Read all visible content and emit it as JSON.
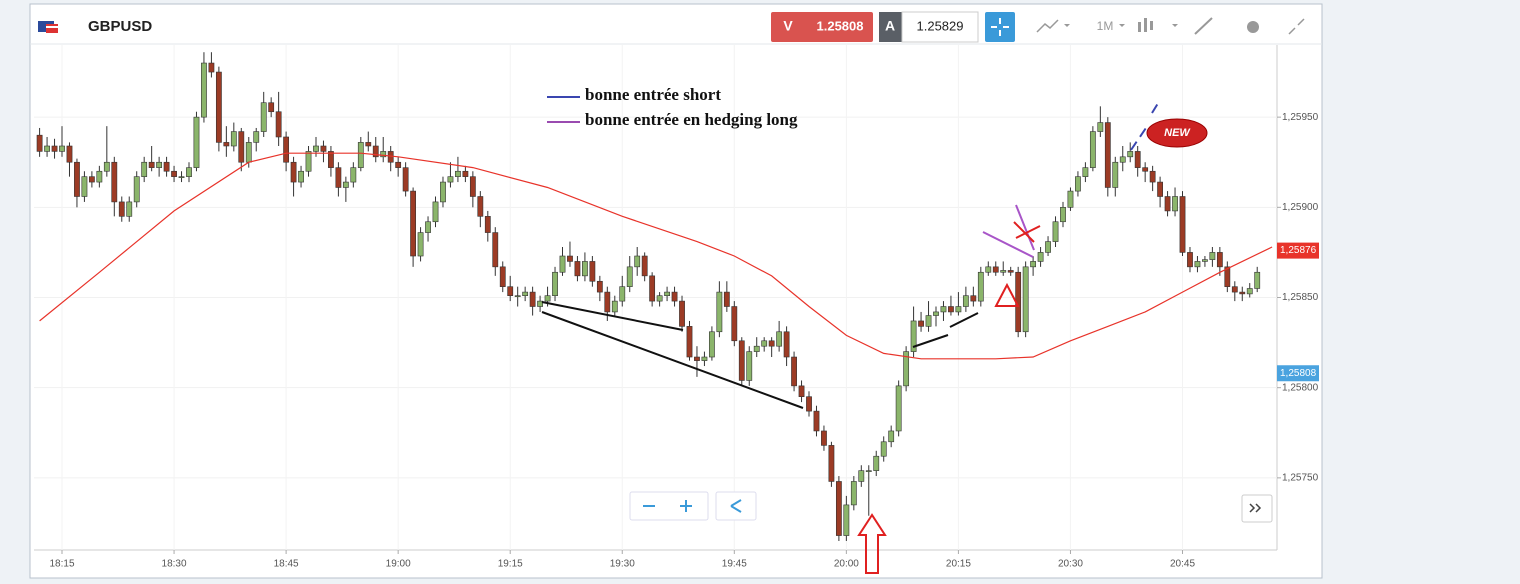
{
  "chart_data": {
    "type": "candlestick",
    "title": "GBPUSD",
    "bid_label": "V",
    "bid": 1.25808,
    "ask_label": "A",
    "ask": 1.25829,
    "timeframe": "1M",
    "badge": "NEW",
    "annotations": [
      "bonne entrée short",
      "bonne entrée en hedging long"
    ],
    "up_color": "#8bb56b",
    "down_color": "#9c3b25",
    "ma_color": "#e8332a",
    "grid": true,
    "ylim": [
      1.2571,
      1.2599
    ],
    "yticks": [
      {
        "value": 1.2575,
        "label": "1,25750"
      },
      {
        "value": 1.258,
        "label": "1,25800"
      },
      {
        "value": 1.2585,
        "label": "1,25850"
      },
      {
        "value": 1.259,
        "label": "1,25900"
      },
      {
        "value": 1.2595,
        "label": "1,25950"
      }
    ],
    "price_tags": [
      {
        "value": 1.25876,
        "label": "1,25876",
        "color": "#e8332a"
      },
      {
        "value": 1.25808,
        "label": "1,25808",
        "color": "#4aa3df"
      }
    ],
    "xticks": [
      "18:15",
      "18:30",
      "18:45",
      "19:00",
      "19:15",
      "19:30",
      "19:45",
      "20:00",
      "20:15",
      "20:30",
      "20:45"
    ],
    "x": [
      "18:12",
      "18:13",
      "18:14",
      "18:15",
      "18:16",
      "18:17",
      "18:18",
      "18:19",
      "18:20",
      "18:21",
      "18:22",
      "18:23",
      "18:24",
      "18:25",
      "18:26",
      "18:27",
      "18:28",
      "18:29",
      "18:30",
      "18:31",
      "18:32",
      "18:33",
      "18:34",
      "18:35",
      "18:36",
      "18:37",
      "18:38",
      "18:39",
      "18:40",
      "18:41",
      "18:42",
      "18:43",
      "18:44",
      "18:45",
      "18:46",
      "18:47",
      "18:48",
      "18:49",
      "18:50",
      "18:51",
      "18:52",
      "18:53",
      "18:54",
      "18:55",
      "18:56",
      "18:57",
      "18:58",
      "18:59",
      "19:00",
      "19:01",
      "19:02",
      "19:03",
      "19:04",
      "19:05",
      "19:06",
      "19:07",
      "19:08",
      "19:09",
      "19:10",
      "19:11",
      "19:12",
      "19:13",
      "19:14",
      "19:15",
      "19:16",
      "19:17",
      "19:18",
      "19:19",
      "19:20",
      "19:21",
      "19:22",
      "19:23",
      "19:24",
      "19:25",
      "19:26",
      "19:27",
      "19:28",
      "19:29",
      "19:30",
      "19:31",
      "19:32",
      "19:33",
      "19:34",
      "19:35",
      "19:36",
      "19:37",
      "19:38",
      "19:39",
      "19:40",
      "19:41",
      "19:42",
      "19:43",
      "19:44",
      "19:45",
      "19:46",
      "19:47",
      "19:48",
      "19:49",
      "19:50",
      "19:51",
      "19:52",
      "19:53",
      "19:54",
      "19:55",
      "19:56",
      "19:57",
      "19:58",
      "19:59",
      "20:00",
      "20:01",
      "20:02",
      "20:03",
      "20:04",
      "20:05",
      "20:06",
      "20:07",
      "20:08",
      "20:09",
      "20:10",
      "20:11",
      "20:12",
      "20:13",
      "20:14",
      "20:15",
      "20:16",
      "20:17",
      "20:18",
      "20:19",
      "20:20",
      "20:21",
      "20:22",
      "20:23",
      "20:24",
      "20:25",
      "20:26",
      "20:27",
      "20:28",
      "20:29",
      "20:30",
      "20:31",
      "20:32",
      "20:33",
      "20:34",
      "20:35",
      "20:36",
      "20:37",
      "20:38",
      "20:39",
      "20:40",
      "20:41",
      "20:42",
      "20:43",
      "20:44",
      "20:45",
      "20:46",
      "20:47",
      "20:48",
      "20:49",
      "20:50",
      "20:51",
      "20:52",
      "20:53",
      "20:54",
      "20:55"
    ],
    "ohlc": [
      [
        1.2594,
        1.25944,
        1.25928,
        1.25931
      ],
      [
        1.25931,
        1.25939,
        1.25928,
        1.25934
      ],
      [
        1.25934,
        1.25938,
        1.25927,
        1.25931
      ],
      [
        1.25931,
        1.25945,
        1.25928,
        1.25934
      ],
      [
        1.25934,
        1.25936,
        1.25917,
        1.25925
      ],
      [
        1.25925,
        1.25927,
        1.259,
        1.25906
      ],
      [
        1.25906,
        1.2592,
        1.25903,
        1.25917
      ],
      [
        1.25917,
        1.2592,
        1.25911,
        1.25914
      ],
      [
        1.25914,
        1.25923,
        1.25911,
        1.2592
      ],
      [
        1.2592,
        1.25945,
        1.25917,
        1.25925
      ],
      [
        1.25925,
        1.25928,
        1.25895,
        1.25903
      ],
      [
        1.25903,
        1.25906,
        1.25892,
        1.25895
      ],
      [
        1.25895,
        1.25906,
        1.25892,
        1.25903
      ],
      [
        1.25903,
        1.2592,
        1.259,
        1.25917
      ],
      [
        1.25917,
        1.25928,
        1.25914,
        1.25925
      ],
      [
        1.25925,
        1.25934,
        1.2592,
        1.25922
      ],
      [
        1.25922,
        1.25928,
        1.25917,
        1.25925
      ],
      [
        1.25925,
        1.25928,
        1.25917,
        1.2592
      ],
      [
        1.2592,
        1.25923,
        1.25914,
        1.25917
      ],
      [
        1.25917,
        1.2592,
        1.25914,
        1.25917
      ],
      [
        1.25917,
        1.25925,
        1.25914,
        1.25922
      ],
      [
        1.25922,
        1.25953,
        1.2592,
        1.2595
      ],
      [
        1.2595,
        1.25986,
        1.25947,
        1.2598
      ],
      [
        1.2598,
        1.25986,
        1.25972,
        1.25975
      ],
      [
        1.25975,
        1.25978,
        1.25931,
        1.25936
      ],
      [
        1.25936,
        1.25945,
        1.25928,
        1.25934
      ],
      [
        1.25934,
        1.25947,
        1.25931,
        1.25942
      ],
      [
        1.25942,
        1.25944,
        1.2592,
        1.25925
      ],
      [
        1.25925,
        1.25939,
        1.25922,
        1.25936
      ],
      [
        1.25936,
        1.25944,
        1.25931,
        1.25942
      ],
      [
        1.25942,
        1.25964,
        1.25939,
        1.25958
      ],
      [
        1.25958,
        1.25961,
        1.2595,
        1.25953
      ],
      [
        1.25953,
        1.25964,
        1.25934,
        1.25939
      ],
      [
        1.25939,
        1.25942,
        1.2592,
        1.25925
      ],
      [
        1.25925,
        1.25928,
        1.25906,
        1.25914
      ],
      [
        1.25914,
        1.25923,
        1.25911,
        1.2592
      ],
      [
        1.2592,
        1.25934,
        1.25917,
        1.25931
      ],
      [
        1.25931,
        1.25939,
        1.25928,
        1.25934
      ],
      [
        1.25934,
        1.25937,
        1.25925,
        1.25931
      ],
      [
        1.25931,
        1.25934,
        1.25917,
        1.25922
      ],
      [
        1.25922,
        1.25925,
        1.25906,
        1.25911
      ],
      [
        1.25911,
        1.25917,
        1.25903,
        1.25914
      ],
      [
        1.25914,
        1.25925,
        1.25911,
        1.25922
      ],
      [
        1.25922,
        1.25939,
        1.2592,
        1.25936
      ],
      [
        1.25936,
        1.25942,
        1.25931,
        1.25934
      ],
      [
        1.25934,
        1.25939,
        1.25925,
        1.25928
      ],
      [
        1.25928,
        1.25939,
        1.25925,
        1.25931
      ],
      [
        1.25931,
        1.25934,
        1.2592,
        1.25925
      ],
      [
        1.25925,
        1.25928,
        1.25917,
        1.25922
      ],
      [
        1.25922,
        1.25925,
        1.25906,
        1.25909
      ],
      [
        1.25909,
        1.25911,
        1.25867,
        1.25873
      ],
      [
        1.25873,
        1.25889,
        1.2587,
        1.25886
      ],
      [
        1.25886,
        1.25895,
        1.25881,
        1.25892
      ],
      [
        1.25892,
        1.25906,
        1.25889,
        1.25903
      ],
      [
        1.25903,
        1.25917,
        1.259,
        1.25914
      ],
      [
        1.25914,
        1.25925,
        1.25911,
        1.25917
      ],
      [
        1.25917,
        1.25928,
        1.25914,
        1.2592
      ],
      [
        1.2592,
        1.25923,
        1.25914,
        1.25917
      ],
      [
        1.25917,
        1.2592,
        1.259,
        1.25906
      ],
      [
        1.25906,
        1.25909,
        1.25889,
        1.25895
      ],
      [
        1.25895,
        1.25898,
        1.25881,
        1.25886
      ],
      [
        1.25886,
        1.25889,
        1.25862,
        1.25867
      ],
      [
        1.25867,
        1.2587,
        1.25853,
        1.25856
      ],
      [
        1.25856,
        1.25862,
        1.25848,
        1.25851
      ],
      [
        1.25851,
        1.25856,
        1.25845,
        1.25851
      ],
      [
        1.25851,
        1.25856,
        1.25848,
        1.25853
      ],
      [
        1.25853,
        1.25856,
        1.2584,
        1.25845
      ],
      [
        1.25845,
        1.25851,
        1.25842,
        1.25848
      ],
      [
        1.25848,
        1.25856,
        1.25845,
        1.25851
      ],
      [
        1.25851,
        1.25867,
        1.25848,
        1.25864
      ],
      [
        1.25864,
        1.25878,
        1.25862,
        1.25873
      ],
      [
        1.25873,
        1.25881,
        1.25867,
        1.2587
      ],
      [
        1.2587,
        1.25873,
        1.25859,
        1.25862
      ],
      [
        1.25862,
        1.25875,
        1.25859,
        1.2587
      ],
      [
        1.2587,
        1.25873,
        1.25856,
        1.25859
      ],
      [
        1.25859,
        1.25862,
        1.25848,
        1.25853
      ],
      [
        1.25853,
        1.25856,
        1.25837,
        1.25842
      ],
      [
        1.25842,
        1.25851,
        1.2584,
        1.25848
      ],
      [
        1.25848,
        1.25862,
        1.25845,
        1.25856
      ],
      [
        1.25856,
        1.25873,
        1.25853,
        1.25867
      ],
      [
        1.25867,
        1.25878,
        1.25862,
        1.25873
      ],
      [
        1.25873,
        1.25875,
        1.25859,
        1.25862
      ],
      [
        1.25862,
        1.25864,
        1.25845,
        1.25848
      ],
      [
        1.25848,
        1.25853,
        1.25845,
        1.25851
      ],
      [
        1.25851,
        1.25856,
        1.25848,
        1.25853
      ],
      [
        1.25853,
        1.25856,
        1.25845,
        1.25848
      ],
      [
        1.25848,
        1.25851,
        1.25831,
        1.25834
      ],
      [
        1.25834,
        1.25837,
        1.25815,
        1.25817
      ],
      [
        1.25817,
        1.25823,
        1.25806,
        1.25815
      ],
      [
        1.25815,
        1.2582,
        1.25812,
        1.25817
      ],
      [
        1.25817,
        1.25834,
        1.25815,
        1.25831
      ],
      [
        1.25831,
        1.25859,
        1.25828,
        1.25853
      ],
      [
        1.25853,
        1.25859,
        1.25842,
        1.25845
      ],
      [
        1.25845,
        1.25848,
        1.25823,
        1.25826
      ],
      [
        1.25826,
        1.25828,
        1.25801,
        1.25804
      ],
      [
        1.25804,
        1.25823,
        1.25801,
        1.2582
      ],
      [
        1.2582,
        1.25828,
        1.25817,
        1.25823
      ],
      [
        1.25823,
        1.25828,
        1.2582,
        1.25826
      ],
      [
        1.25826,
        1.25828,
        1.25817,
        1.25823
      ],
      [
        1.25823,
        1.25837,
        1.2582,
        1.25831
      ],
      [
        1.25831,
        1.25834,
        1.25812,
        1.25817
      ],
      [
        1.25817,
        1.2582,
        1.25798,
        1.25801
      ],
      [
        1.25801,
        1.25804,
        1.25792,
        1.25795
      ],
      [
        1.25795,
        1.25798,
        1.25784,
        1.25787
      ],
      [
        1.25787,
        1.2579,
        1.25773,
        1.25776
      ],
      [
        1.25776,
        1.25779,
        1.25765,
        1.25768
      ],
      [
        1.25768,
        1.2577,
        1.25745,
        1.25748
      ],
      [
        1.25748,
        1.25751,
        1.25715,
        1.25718
      ],
      [
        1.25718,
        1.2574,
        1.25715,
        1.25735
      ],
      [
        1.25735,
        1.25751,
        1.25732,
        1.25748
      ],
      [
        1.25748,
        1.25757,
        1.25745,
        1.25754
      ],
      [
        1.25754,
        1.25757,
        1.25729,
        1.25754
      ],
      [
        1.25754,
        1.25765,
        1.25751,
        1.25762
      ],
      [
        1.25762,
        1.25773,
        1.25759,
        1.2577
      ],
      [
        1.2577,
        1.25779,
        1.25767,
        1.25776
      ],
      [
        1.25776,
        1.25804,
        1.25773,
        1.25801
      ],
      [
        1.25801,
        1.25823,
        1.25798,
        1.2582
      ],
      [
        1.2582,
        1.25845,
        1.25817,
        1.25837
      ],
      [
        1.25837,
        1.25842,
        1.25831,
        1.25834
      ],
      [
        1.25834,
        1.25848,
        1.25831,
        1.2584
      ],
      [
        1.2584,
        1.25845,
        1.25834,
        1.25842
      ],
      [
        1.25842,
        1.25848,
        1.25837,
        1.25845
      ],
      [
        1.25845,
        1.25851,
        1.2584,
        1.25842
      ],
      [
        1.25842,
        1.25853,
        1.2584,
        1.25845
      ],
      [
        1.25845,
        1.25856,
        1.25842,
        1.25851
      ],
      [
        1.25851,
        1.25856,
        1.25845,
        1.25848
      ],
      [
        1.25848,
        1.25867,
        1.25845,
        1.25864
      ],
      [
        1.25864,
        1.2587,
        1.25862,
        1.25867
      ],
      [
        1.25867,
        1.2587,
        1.25862,
        1.25864
      ],
      [
        1.25864,
        1.2587,
        1.25862,
        1.25865
      ],
      [
        1.25865,
        1.25867,
        1.25862,
        1.25864
      ],
      [
        1.25864,
        1.25867,
        1.25828,
        1.25831
      ],
      [
        1.25831,
        1.2587,
        1.25828,
        1.25867
      ],
      [
        1.25867,
        1.25873,
        1.25862,
        1.2587
      ],
      [
        1.2587,
        1.25878,
        1.25867,
        1.25875
      ],
      [
        1.25875,
        1.25884,
        1.25873,
        1.25881
      ],
      [
        1.25881,
        1.25895,
        1.25878,
        1.25892
      ],
      [
        1.25892,
        1.25903,
        1.25889,
        1.259
      ],
      [
        1.259,
        1.25911,
        1.25898,
        1.25909
      ],
      [
        1.25909,
        1.2592,
        1.25906,
        1.25917
      ],
      [
        1.25917,
        1.25925,
        1.25914,
        1.25922
      ],
      [
        1.25922,
        1.25945,
        1.2592,
        1.25942
      ],
      [
        1.25942,
        1.25956,
        1.25939,
        1.25947
      ],
      [
        1.25947,
        1.2595,
        1.25906,
        1.25911
      ],
      [
        1.25911,
        1.25928,
        1.25906,
        1.25925
      ],
      [
        1.25925,
        1.25934,
        1.2592,
        1.25928
      ],
      [
        1.25928,
        1.25936,
        1.25925,
        1.25931
      ],
      [
        1.25931,
        1.25934,
        1.25917,
        1.25922
      ],
      [
        1.25922,
        1.25925,
        1.25914,
        1.2592
      ],
      [
        1.2592,
        1.25923,
        1.25909,
        1.25914
      ],
      [
        1.25914,
        1.25917,
        1.259,
        1.25906
      ],
      [
        1.25906,
        1.25909,
        1.25895,
        1.25898
      ],
      [
        1.25898,
        1.25911,
        1.25895,
        1.25906
      ],
      [
        1.25906,
        1.25909,
        1.25873,
        1.25875
      ],
      [
        1.25875,
        1.25878,
        1.25864,
        1.25867
      ],
      [
        1.25867,
        1.25873,
        1.25864,
        1.2587
      ],
      [
        1.2587,
        1.25873,
        1.25867,
        1.25871
      ],
      [
        1.25871,
        1.25878,
        1.25867,
        1.25875
      ],
      [
        1.25875,
        1.25878,
        1.25862,
        1.25867
      ],
      [
        1.25867,
        1.2587,
        1.25853,
        1.25856
      ],
      [
        1.25856,
        1.25859,
        1.25848,
        1.25853
      ],
      [
        1.25853,
        1.25856,
        1.25848,
        1.25852
      ],
      [
        1.25852,
        1.25858,
        1.2585,
        1.25855
      ],
      [
        1.25855,
        1.25867,
        1.25853,
        1.25864
      ]
    ],
    "ma": {
      "x": [
        "18:12",
        "18:20",
        "18:30",
        "18:40",
        "18:45",
        "18:55",
        "19:00",
        "19:10",
        "19:20",
        "19:30",
        "19:40",
        "19:45",
        "19:50",
        "19:55",
        "20:00",
        "20:05",
        "20:10",
        "20:15",
        "20:20",
        "20:25",
        "20:30",
        "20:35",
        "20:40",
        "20:45",
        "20:50",
        "20:57"
      ],
      "values": [
        1.25837,
        1.25864,
        1.25898,
        1.25925,
        1.2593,
        1.2593,
        1.25928,
        1.25922,
        1.25911,
        1.25895,
        1.25881,
        1.25873,
        1.25862,
        1.25845,
        1.25829,
        1.25819,
        1.25816,
        1.25816,
        1.25816,
        1.25817,
        1.25826,
        1.25834,
        1.25842,
        1.25853,
        1.25864,
        1.25878
      ]
    }
  }
}
